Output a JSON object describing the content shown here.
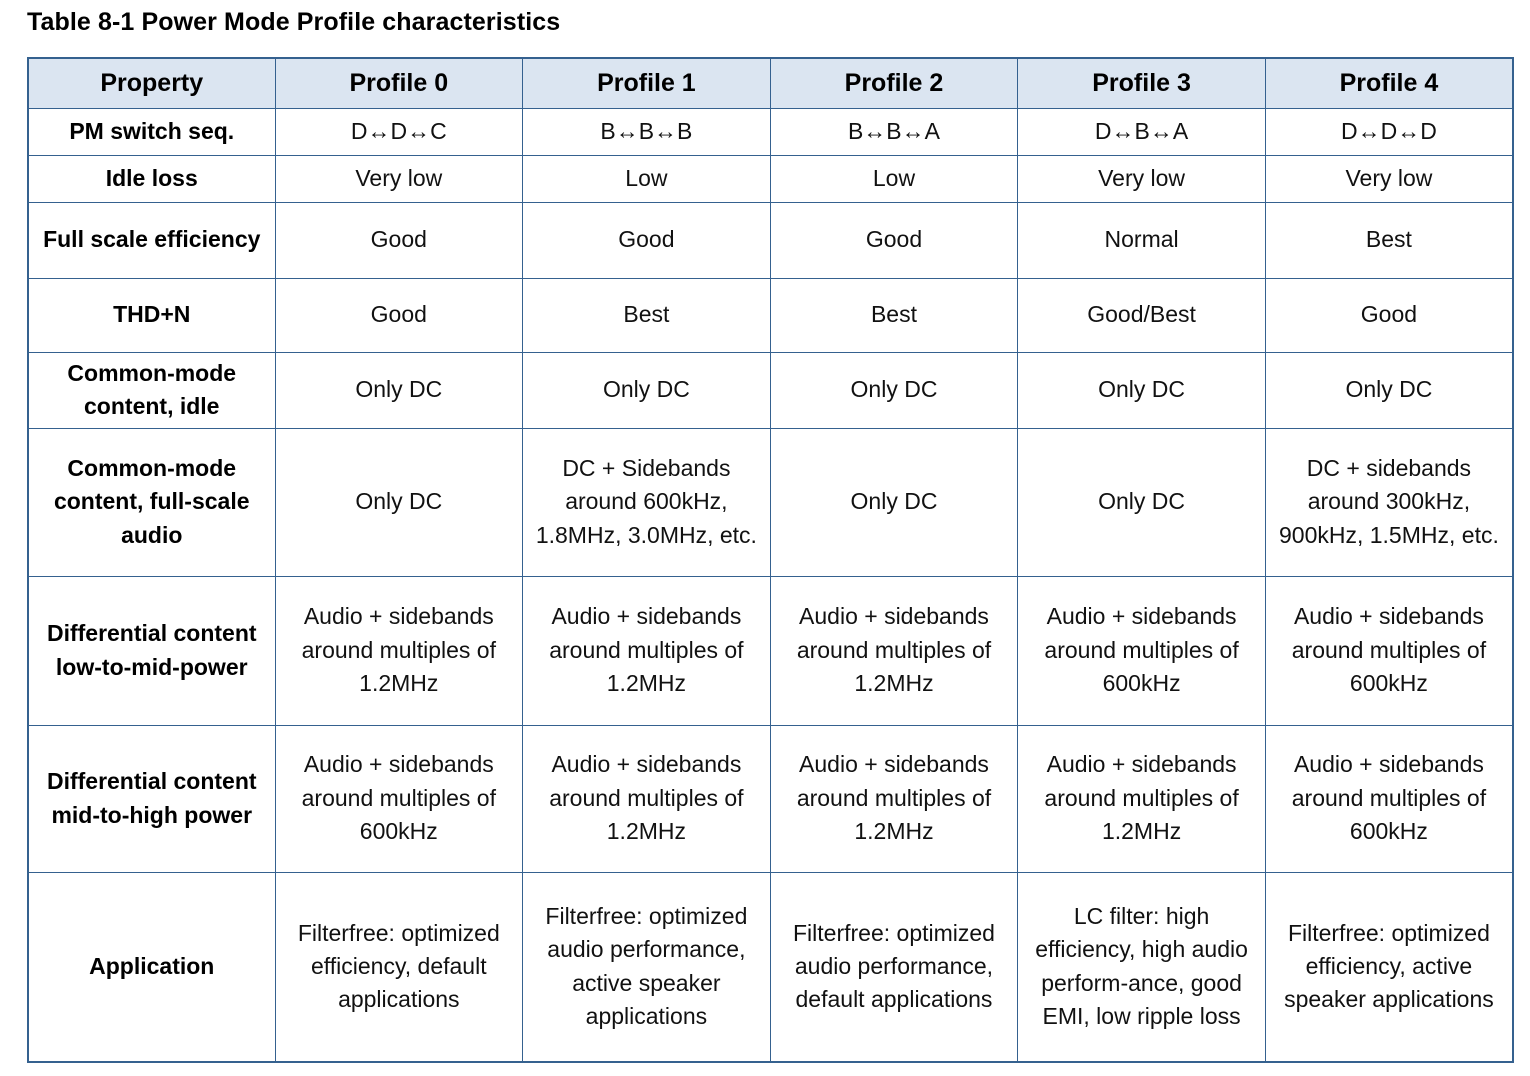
{
  "title": "Table 8-1 Power Mode Profile characteristics",
  "colors": {
    "border": "#35618f",
    "header_bg": "#dbe5f1",
    "text": "#111111"
  },
  "table": {
    "columns": [
      "Property",
      "Profile 0",
      "Profile 1",
      "Profile 2",
      "Profile 3",
      "Profile 4"
    ],
    "rows": [
      {
        "property": "PM switch seq.",
        "values": [
          "D↔D↔C",
          "B↔B↔B",
          "B↔B↔A",
          "D↔B↔A",
          "D↔D↔D"
        ]
      },
      {
        "property": "Idle loss",
        "values": [
          "Very low",
          "Low",
          "Low",
          "Very low",
          "Very low"
        ]
      },
      {
        "property": "Full scale efficiency",
        "values": [
          "Good",
          "Good",
          "Good",
          "Normal",
          "Best"
        ]
      },
      {
        "property": "THD+N",
        "values": [
          "Good",
          "Best",
          "Best",
          "Good/Best",
          "Good"
        ]
      },
      {
        "property": "Common-mode content, idle",
        "values": [
          "Only DC",
          "Only DC",
          "Only DC",
          "Only DC",
          "Only DC"
        ]
      },
      {
        "property": "Common-mode content, full-scale audio",
        "values": [
          "Only DC",
          "DC + Sidebands around 600kHz, 1.8MHz, 3.0MHz, etc.",
          "Only DC",
          "Only DC",
          "DC + sidebands around 300kHz, 900kHz, 1.5MHz, etc."
        ]
      },
      {
        "property": "Differential content low-to-mid-power",
        "values": [
          "Audio + sidebands around multiples of 1.2MHz",
          "Audio + sidebands around multiples of 1.2MHz",
          "Audio + sidebands around multiples of 1.2MHz",
          "Audio + sidebands around multiples of 600kHz",
          "Audio + sidebands around multiples of 600kHz"
        ]
      },
      {
        "property": "Differential content mid-to-high power",
        "values": [
          "Audio + sidebands around multiples of 600kHz",
          "Audio + sidebands around multiples of 1.2MHz",
          "Audio + sidebands around multiples of 1.2MHz",
          "Audio + sidebands around multiples of 1.2MHz",
          "Audio + sidebands around multiples of 600kHz"
        ]
      },
      {
        "property": "Application",
        "values": [
          "Filterfree: optimized efficiency, default applications",
          "Filterfree: optimized audio performance, active speaker applications",
          "Filterfree: optimized audio performance, default applications",
          "LC filter: high efficiency, high audio perform-ance, good EMI, low ripple loss",
          "Filterfree: optimized efficiency, active speaker applications"
        ]
      }
    ]
  }
}
